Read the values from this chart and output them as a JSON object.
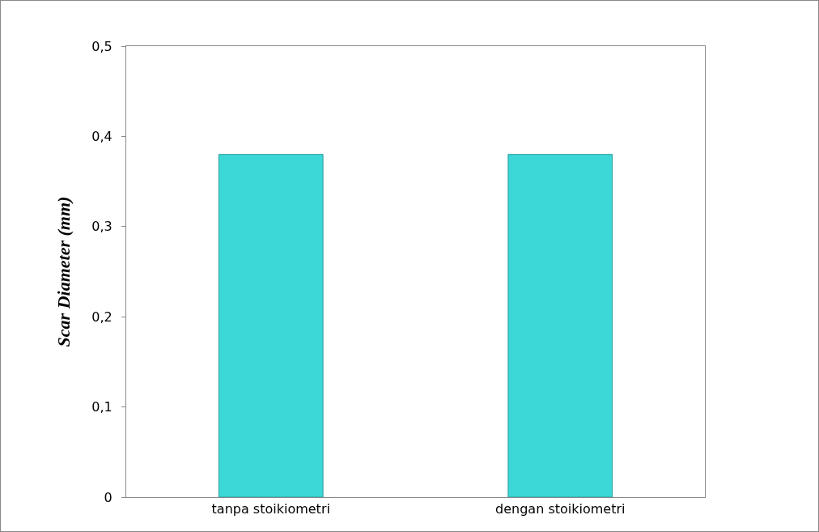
{
  "chart_data": {
    "type": "bar",
    "ylabel": "Scar Diameter (mm)",
    "categories": [
      "tanpa stoikiometri",
      "dengan stoikiometri"
    ],
    "values": [
      0.38,
      0.38
    ],
    "color": "#3cd7d7",
    "ylim": [
      0,
      0.5
    ],
    "yticks": [
      {
        "value": 0,
        "label": "0"
      },
      {
        "value": 0.1,
        "label": "0,1"
      },
      {
        "value": 0.2,
        "label": "0,2"
      },
      {
        "value": 0.3,
        "label": "0,3"
      },
      {
        "value": 0.4,
        "label": "0,4"
      },
      {
        "value": 0.5,
        "label": "0,5"
      }
    ],
    "grid": false,
    "legend": false
  }
}
